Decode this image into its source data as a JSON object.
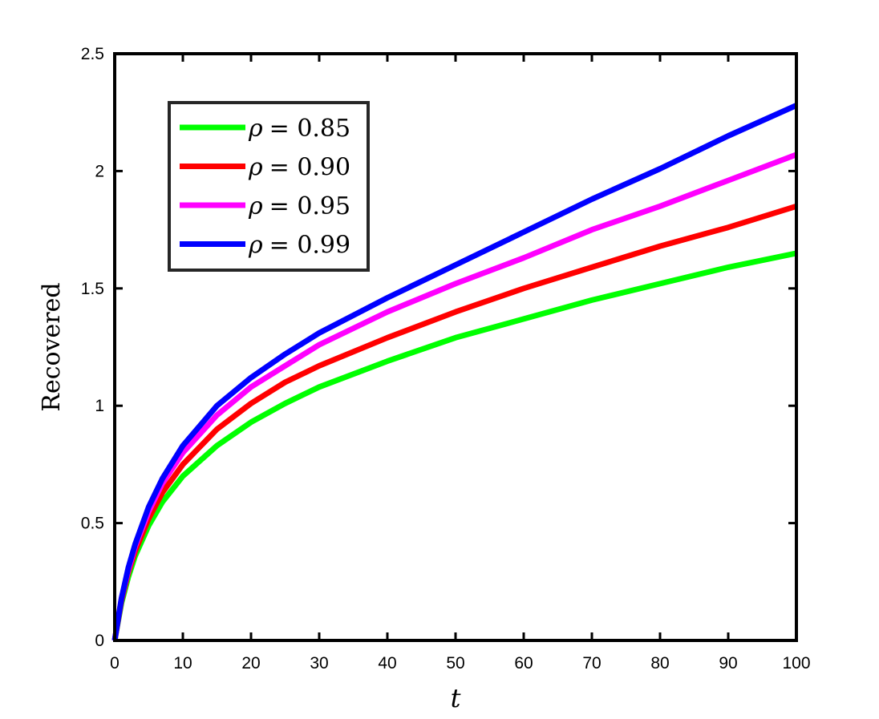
{
  "chart_data": {
    "type": "line",
    "title": "",
    "xlabel": "t",
    "ylabel": "Recovered",
    "xlim": [
      0,
      100
    ],
    "ylim": [
      0,
      2.5
    ],
    "x_ticks": [
      "0",
      "10",
      "20",
      "30",
      "40",
      "50",
      "60",
      "70",
      "80",
      "90",
      "100"
    ],
    "y_ticks": [
      "0",
      "0.5",
      "1",
      "1.5",
      "2",
      "2.5"
    ],
    "grid": false,
    "legend_position": "top-left",
    "x": [
      0,
      1,
      2,
      3,
      5,
      7,
      10,
      15,
      20,
      25,
      30,
      40,
      50,
      60,
      70,
      80,
      90,
      100
    ],
    "series": [
      {
        "name": "ρ = 0.85",
        "legend_symbol": "ρ",
        "legend_value": "= 0.85",
        "color": "#00ff00",
        "values": [
          0,
          0.16,
          0.27,
          0.36,
          0.49,
          0.59,
          0.7,
          0.83,
          0.93,
          1.01,
          1.08,
          1.19,
          1.29,
          1.37,
          1.45,
          1.52,
          1.59,
          1.65
        ]
      },
      {
        "name": "ρ = 0.90",
        "legend_symbol": "ρ",
        "legend_value": "= 0.90",
        "color": "#ff0000",
        "values": [
          0,
          0.17,
          0.29,
          0.38,
          0.52,
          0.63,
          0.75,
          0.9,
          1.01,
          1.1,
          1.17,
          1.29,
          1.4,
          1.5,
          1.59,
          1.68,
          1.76,
          1.85
        ]
      },
      {
        "name": "ρ = 0.95",
        "legend_symbol": "ρ",
        "legend_value": "= 0.95",
        "color": "#ff00ff",
        "values": [
          0,
          0.18,
          0.3,
          0.4,
          0.55,
          0.67,
          0.8,
          0.96,
          1.08,
          1.17,
          1.26,
          1.4,
          1.52,
          1.63,
          1.75,
          1.85,
          1.96,
          2.07
        ]
      },
      {
        "name": "ρ = 0.99",
        "legend_symbol": "ρ",
        "legend_value": "= 0.99",
        "color": "#0000ff",
        "values": [
          0,
          0.18,
          0.31,
          0.41,
          0.57,
          0.69,
          0.83,
          1.0,
          1.12,
          1.22,
          1.31,
          1.46,
          1.6,
          1.74,
          1.88,
          2.01,
          2.15,
          2.28
        ]
      }
    ]
  }
}
